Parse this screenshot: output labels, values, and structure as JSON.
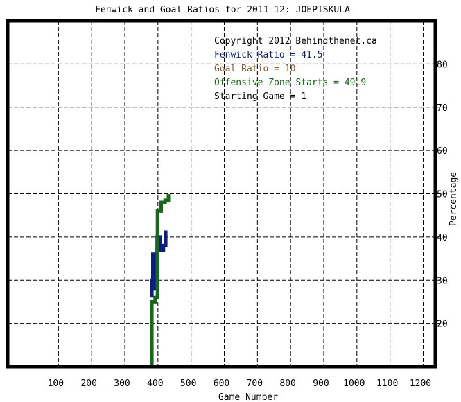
{
  "chart_data": {
    "type": "line",
    "title": "Fenwick and Goal Ratios for 2011-12: JOEPISKULA",
    "xlabel": "Game Number",
    "ylabel": "Percentage",
    "xlim": [
      -45,
      1245
    ],
    "ylim": [
      10,
      90
    ],
    "x_ticks": [
      100,
      200,
      300,
      400,
      500,
      600,
      700,
      800,
      900,
      1000,
      1100,
      1200
    ],
    "y_ticks": [
      20,
      30,
      40,
      50,
      60,
      70,
      80
    ],
    "grid": true,
    "legend_position": "top-right",
    "annotations": [
      {
        "text": "Copyright 2012 Behindthenet.ca",
        "color": "#000000"
      },
      {
        "text": "Fenwick Ratio = 41.5",
        "color": "#0b1f80"
      },
      {
        "text": "Goal Ratio = 10",
        "color": "#8b5a2b"
      },
      {
        "text": "Offensive Zone Starts = 49.9",
        "color": "#176b17"
      },
      {
        "text": "Starting Game = 1",
        "color": "#000000"
      }
    ],
    "series": [
      {
        "color": "#0b1f80",
        "x": [
          390,
          390,
          393,
          393,
          400,
          400,
          406,
          406,
          416,
          416,
          425,
          425,
          432,
          432
        ],
        "y": [
          26,
          30,
          30,
          36,
          36,
          28,
          28,
          40,
          40,
          37,
          37,
          38,
          38,
          41.5
        ]
      },
      {
        "color": "#176b17",
        "x": [
          390,
          390,
          400,
          400,
          407,
          407,
          418,
          418,
          430,
          430,
          440,
          440
        ],
        "y": [
          10,
          25,
          25,
          26,
          26,
          46,
          46,
          48,
          48,
          48.5,
          48.5,
          49.9
        ]
      }
    ]
  }
}
